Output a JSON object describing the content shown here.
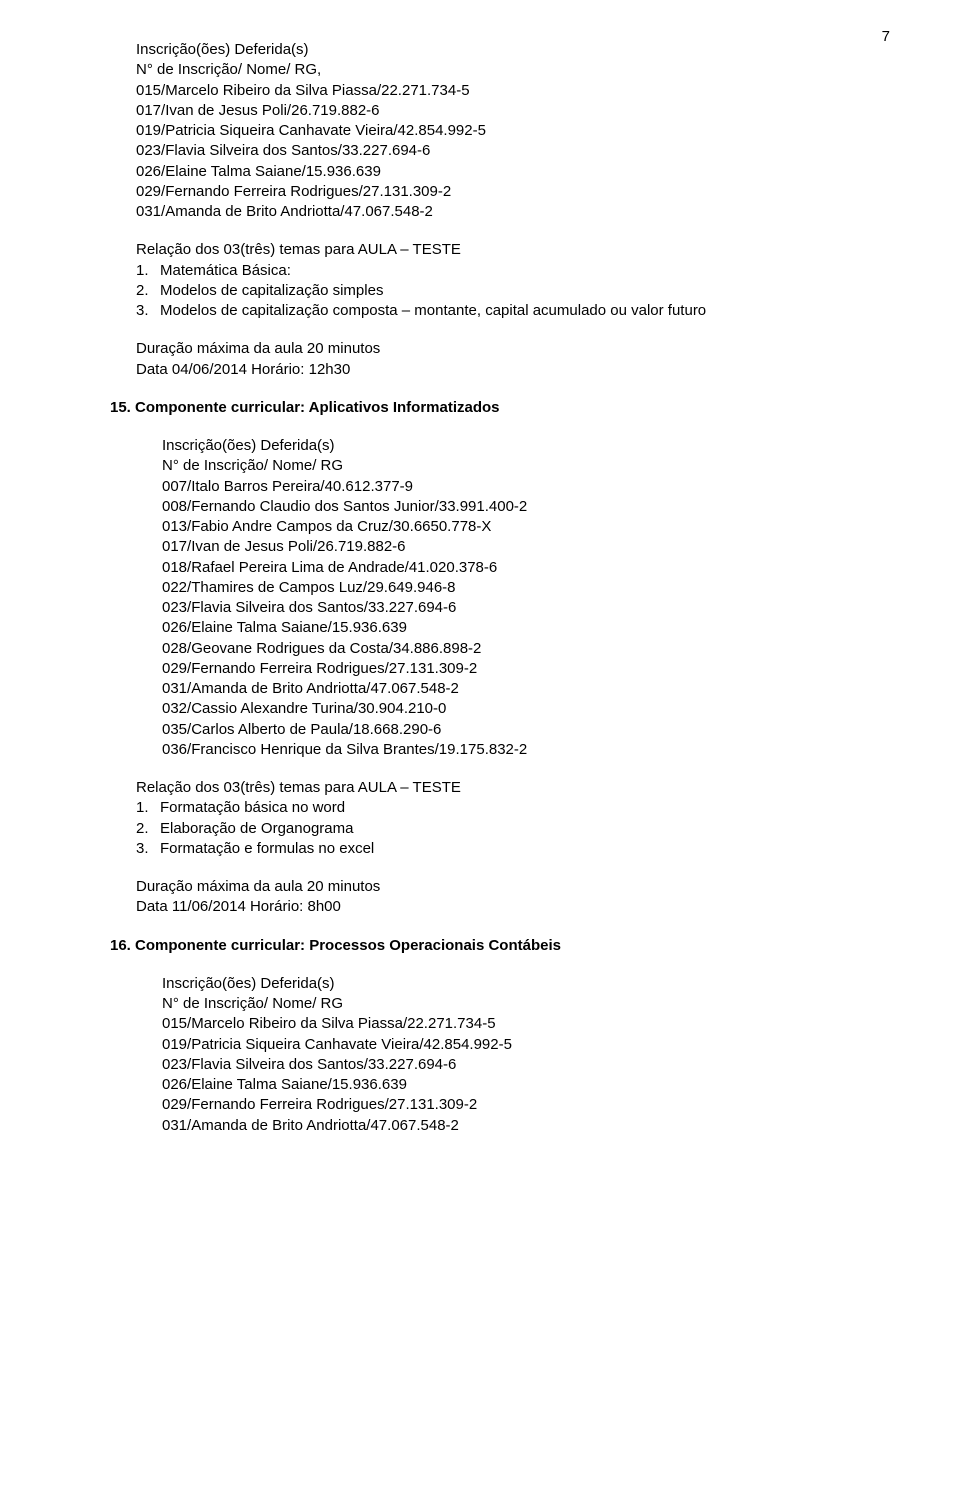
{
  "page_number": "7",
  "section14": {
    "inscricoes_header": "Inscrição(ões) Deferida(s)",
    "numero_header": "N° de Inscrição/ Nome/ RG,",
    "candidates": [
      "015/Marcelo Ribeiro da Silva Piassa/22.271.734-5",
      "017/Ivan de Jesus Poli/26.719.882-6",
      "019/Patricia Siqueira Canhavate Vieira/42.854.992-5",
      "023/Flavia Silveira dos Santos/33.227.694-6",
      "026/Elaine Talma Saiane/15.936.639",
      "029/Fernando Ferreira Rodrigues/27.131.309-2",
      "031/Amanda de Brito Andriotta/47.067.548-2"
    ],
    "relacao_header": "Relação dos 03(três) temas para AULA – TESTE",
    "temas": [
      {
        "num": "1.",
        "text": "Matemática Básica:"
      },
      {
        "num": "2.",
        "text": "Modelos de capitalização simples"
      },
      {
        "num": "3.",
        "text": "Modelos de capitalização composta – montante, capital acumulado ou valor futuro"
      }
    ],
    "duracao": "Duração máxima da aula 20 minutos",
    "data_line": "Data    04/06/2014         Horário:  12h30"
  },
  "section15": {
    "title": "15. Componente curricular: Aplicativos Informatizados",
    "inscricoes_header": "Inscrição(ões) Deferida(s)",
    "numero_header": "N° de Inscrição/ Nome/ RG",
    "candidates": [
      "007/Italo Barros Pereira/40.612.377-9",
      "008/Fernando Claudio dos Santos Junior/33.991.400-2",
      "013/Fabio Andre Campos da Cruz/30.6650.778-X",
      "017/Ivan de Jesus Poli/26.719.882-6",
      "018/Rafael Pereira Lima de Andrade/41.020.378-6",
      "022/Thamires de Campos Luz/29.649.946-8",
      "023/Flavia Silveira dos Santos/33.227.694-6",
      "026/Elaine Talma Saiane/15.936.639",
      "028/Geovane Rodrigues da Costa/34.886.898-2",
      "029/Fernando Ferreira Rodrigues/27.131.309-2",
      "031/Amanda de Brito Andriotta/47.067.548-2",
      "032/Cassio Alexandre Turina/30.904.210-0",
      "035/Carlos Alberto de Paula/18.668.290-6",
      "036/Francisco Henrique da Silva Brantes/19.175.832-2"
    ],
    "relacao_header": "Relação dos 03(três) temas para AULA – TESTE",
    "temas": [
      {
        "num": "1.",
        "text": "Formatação básica no word"
      },
      {
        "num": "2.",
        "text": "Elaboração de Organograma"
      },
      {
        "num": "3.",
        "text": "Formatação e formulas no excel"
      }
    ],
    "duracao": "Duração máxima da aula 20 minutos",
    "data_line": "Data   11/06/2014         Horário: 8h00"
  },
  "section16": {
    "title": "16. Componente curricular: Processos Operacionais Contábeis",
    "inscricoes_header": "Inscrição(ões) Deferida(s)",
    "numero_header": "N° de Inscrição/ Nome/ RG",
    "candidates": [
      "015/Marcelo Ribeiro da Silva Piassa/22.271.734-5",
      "019/Patricia Siqueira Canhavate Vieira/42.854.992-5",
      "023/Flavia Silveira dos Santos/33.227.694-6",
      "026/Elaine Talma Saiane/15.936.639",
      "029/Fernando Ferreira Rodrigues/27.131.309-2",
      "031/Amanda de Brito Andriotta/47.067.548-2"
    ]
  }
}
